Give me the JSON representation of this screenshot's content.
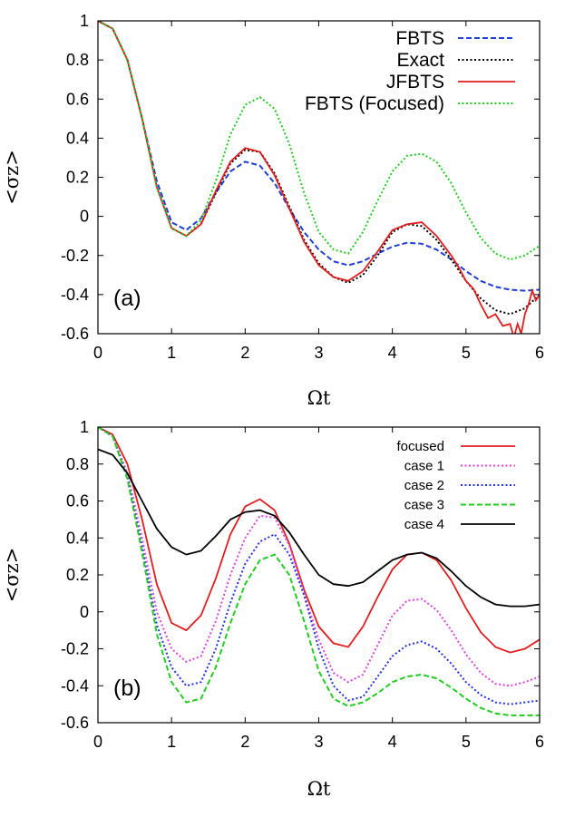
{
  "chart_data": [
    {
      "type": "line",
      "panel_label": "(a)",
      "xlabel": "Ωt",
      "ylabel": "<σz>",
      "xlim": [
        0,
        6
      ],
      "ylim": [
        -0.6,
        1
      ],
      "xticks": [
        "0",
        "1",
        "2",
        "3",
        "4",
        "5",
        "6"
      ],
      "yticks": [
        "-0.6",
        "-0.4",
        "-0.2",
        "0",
        "0.2",
        "0.4",
        "0.6",
        "0.8",
        "1"
      ],
      "legend_position": "top-right",
      "series": [
        {
          "name": "FBTS",
          "color": "#1f3fd6",
          "dash": "dashed",
          "x": [
            0,
            0.2,
            0.4,
            0.6,
            0.8,
            1.0,
            1.2,
            1.4,
            1.6,
            1.8,
            2.0,
            2.2,
            2.4,
            2.6,
            2.8,
            3.0,
            3.2,
            3.4,
            3.6,
            3.8,
            4.0,
            4.2,
            4.4,
            4.6,
            4.8,
            5.0,
            5.2,
            5.4,
            5.6,
            5.8,
            6.0
          ],
          "y": [
            1.0,
            0.96,
            0.8,
            0.5,
            0.18,
            -0.03,
            -0.07,
            -0.01,
            0.12,
            0.23,
            0.28,
            0.26,
            0.17,
            0.04,
            -0.08,
            -0.17,
            -0.23,
            -0.25,
            -0.23,
            -0.19,
            -0.155,
            -0.135,
            -0.14,
            -0.17,
            -0.22,
            -0.28,
            -0.33,
            -0.36,
            -0.375,
            -0.38,
            -0.375
          ]
        },
        {
          "name": "Exact",
          "color": "#000000",
          "dash": "dotted",
          "x": [
            0,
            0.2,
            0.4,
            0.6,
            0.8,
            1.0,
            1.2,
            1.4,
            1.6,
            1.8,
            2.0,
            2.2,
            2.4,
            2.6,
            2.8,
            3.0,
            3.2,
            3.4,
            3.6,
            3.8,
            4.0,
            4.2,
            4.4,
            4.6,
            4.8,
            5.0,
            5.2,
            5.4,
            5.6,
            5.8,
            6.0
          ],
          "y": [
            1.0,
            0.96,
            0.8,
            0.5,
            0.15,
            -0.06,
            -0.1,
            -0.04,
            0.12,
            0.27,
            0.34,
            0.33,
            0.22,
            0.05,
            -0.12,
            -0.24,
            -0.31,
            -0.34,
            -0.3,
            -0.2,
            -0.08,
            -0.04,
            -0.05,
            -0.12,
            -0.22,
            -0.33,
            -0.42,
            -0.48,
            -0.5,
            -0.47,
            -0.4
          ]
        },
        {
          "name": "JFBTS",
          "color": "#e01e1e",
          "dash": "solid",
          "x": [
            0,
            0.2,
            0.4,
            0.6,
            0.8,
            1.0,
            1.2,
            1.4,
            1.6,
            1.8,
            2.0,
            2.2,
            2.4,
            2.6,
            2.8,
            3.0,
            3.2,
            3.4,
            3.6,
            3.8,
            4.0,
            4.2,
            4.4,
            4.6,
            4.8,
            4.9,
            5.0,
            5.1,
            5.2,
            5.3,
            5.4,
            5.5,
            5.6,
            5.65,
            5.7,
            5.75,
            5.8,
            5.85,
            5.9,
            5.95,
            6.0
          ],
          "y": [
            1.0,
            0.96,
            0.8,
            0.5,
            0.15,
            -0.06,
            -0.1,
            -0.04,
            0.13,
            0.28,
            0.35,
            0.33,
            0.21,
            0.04,
            -0.13,
            -0.25,
            -0.31,
            -0.33,
            -0.28,
            -0.18,
            -0.07,
            -0.04,
            -0.03,
            -0.1,
            -0.2,
            -0.26,
            -0.33,
            -0.37,
            -0.45,
            -0.52,
            -0.5,
            -0.56,
            -0.55,
            -0.62,
            -0.55,
            -0.6,
            -0.5,
            -0.45,
            -0.38,
            -0.43,
            -0.4
          ]
        },
        {
          "name": "FBTS (Focused)",
          "color": "#22cc22",
          "dash": "dotted",
          "x": [
            0,
            0.2,
            0.4,
            0.6,
            0.8,
            1.0,
            1.2,
            1.4,
            1.6,
            1.8,
            2.0,
            2.2,
            2.4,
            2.6,
            2.8,
            3.0,
            3.2,
            3.4,
            3.6,
            3.8,
            4.0,
            4.2,
            4.4,
            4.6,
            4.8,
            5.0,
            5.2,
            5.4,
            5.6,
            5.8,
            6.0
          ],
          "y": [
            1.0,
            0.96,
            0.8,
            0.5,
            0.15,
            -0.06,
            -0.1,
            -0.02,
            0.18,
            0.42,
            0.57,
            0.61,
            0.55,
            0.37,
            0.12,
            -0.08,
            -0.17,
            -0.19,
            -0.08,
            0.08,
            0.23,
            0.31,
            0.32,
            0.28,
            0.17,
            0.02,
            -0.11,
            -0.19,
            -0.22,
            -0.2,
            -0.15
          ]
        }
      ]
    },
    {
      "type": "line",
      "panel_label": "(b)",
      "xlabel": "Ωt",
      "ylabel": "<σz>",
      "xlim": [
        0,
        6
      ],
      "ylim": [
        -0.6,
        1
      ],
      "xticks": [
        "0",
        "1",
        "2",
        "3",
        "4",
        "5",
        "6"
      ],
      "yticks": [
        "-0.6",
        "-0.4",
        "-0.2",
        "0",
        "0.2",
        "0.4",
        "0.6",
        "0.8",
        "1"
      ],
      "legend_position": "top-right",
      "series": [
        {
          "name": "focused",
          "color": "#e01e1e",
          "dash": "solid",
          "x": [
            0,
            0.2,
            0.4,
            0.6,
            0.8,
            1.0,
            1.2,
            1.4,
            1.6,
            1.8,
            2.0,
            2.2,
            2.4,
            2.6,
            2.8,
            3.0,
            3.2,
            3.4,
            3.6,
            3.8,
            4.0,
            4.2,
            4.4,
            4.6,
            4.8,
            5.0,
            5.2,
            5.4,
            5.6,
            5.8,
            6.0
          ],
          "y": [
            1.0,
            0.96,
            0.8,
            0.5,
            0.15,
            -0.06,
            -0.1,
            -0.02,
            0.18,
            0.42,
            0.57,
            0.61,
            0.55,
            0.37,
            0.12,
            -0.08,
            -0.17,
            -0.19,
            -0.08,
            0.08,
            0.23,
            0.31,
            0.32,
            0.28,
            0.17,
            0.02,
            -0.11,
            -0.19,
            -0.22,
            -0.2,
            -0.15
          ]
        },
        {
          "name": "case 1",
          "color": "#dd44dd",
          "dash": "dotted",
          "x": [
            0,
            0.2,
            0.4,
            0.6,
            0.8,
            1.0,
            1.2,
            1.4,
            1.6,
            1.8,
            2.0,
            2.2,
            2.4,
            2.6,
            2.8,
            3.0,
            3.2,
            3.4,
            3.6,
            3.8,
            4.0,
            4.2,
            4.4,
            4.6,
            4.8,
            5.0,
            5.2,
            5.4,
            5.6,
            5.8,
            6.0
          ],
          "y": [
            1.0,
            0.95,
            0.75,
            0.4,
            0.0,
            -0.2,
            -0.27,
            -0.24,
            -0.05,
            0.2,
            0.4,
            0.52,
            0.51,
            0.36,
            0.1,
            -0.15,
            -0.33,
            -0.38,
            -0.34,
            -0.18,
            -0.02,
            0.06,
            0.07,
            0.01,
            -0.1,
            -0.23,
            -0.33,
            -0.39,
            -0.4,
            -0.38,
            -0.35
          ]
        },
        {
          "name": "case 2",
          "color": "#2233dd",
          "dash": "dotted",
          "x": [
            0,
            0.2,
            0.4,
            0.6,
            0.8,
            1.0,
            1.2,
            1.4,
            1.6,
            1.8,
            2.0,
            2.2,
            2.4,
            2.6,
            2.8,
            3.0,
            3.2,
            3.4,
            3.6,
            3.8,
            4.0,
            4.2,
            4.4,
            4.6,
            4.8,
            5.0,
            5.2,
            5.4,
            5.6,
            5.8,
            6.0
          ],
          "y": [
            1.0,
            0.95,
            0.73,
            0.35,
            -0.07,
            -0.3,
            -0.4,
            -0.38,
            -0.2,
            0.05,
            0.26,
            0.38,
            0.42,
            0.31,
            0.09,
            -0.2,
            -0.4,
            -0.48,
            -0.46,
            -0.35,
            -0.24,
            -0.18,
            -0.16,
            -0.2,
            -0.28,
            -0.38,
            -0.45,
            -0.49,
            -0.5,
            -0.49,
            -0.48
          ]
        },
        {
          "name": "case 3",
          "color": "#22cc22",
          "dash": "dashed",
          "x": [
            0,
            0.2,
            0.4,
            0.6,
            0.8,
            1.0,
            1.2,
            1.4,
            1.6,
            1.8,
            2.0,
            2.2,
            2.4,
            2.6,
            2.8,
            3.0,
            3.2,
            3.4,
            3.6,
            3.8,
            4.0,
            4.2,
            4.4,
            4.6,
            4.8,
            5.0,
            5.2,
            5.4,
            5.6,
            5.8,
            6.0
          ],
          "y": [
            1.0,
            0.95,
            0.72,
            0.32,
            -0.12,
            -0.38,
            -0.49,
            -0.47,
            -0.3,
            -0.06,
            0.15,
            0.28,
            0.31,
            0.2,
            -0.05,
            -0.32,
            -0.47,
            -0.51,
            -0.49,
            -0.44,
            -0.38,
            -0.35,
            -0.34,
            -0.36,
            -0.41,
            -0.47,
            -0.52,
            -0.55,
            -0.56,
            -0.56,
            -0.56
          ]
        },
        {
          "name": "case 4",
          "color": "#000000",
          "dash": "solid",
          "x": [
            0,
            0.2,
            0.4,
            0.6,
            0.8,
            1.0,
            1.2,
            1.4,
            1.6,
            1.8,
            2.0,
            2.2,
            2.4,
            2.6,
            2.8,
            3.0,
            3.2,
            3.4,
            3.6,
            3.8,
            4.0,
            4.2,
            4.4,
            4.6,
            4.8,
            5.0,
            5.2,
            5.4,
            5.6,
            5.8,
            6.0
          ],
          "y": [
            0.88,
            0.85,
            0.75,
            0.6,
            0.45,
            0.35,
            0.31,
            0.33,
            0.41,
            0.5,
            0.54,
            0.55,
            0.52,
            0.43,
            0.31,
            0.2,
            0.15,
            0.14,
            0.16,
            0.22,
            0.28,
            0.31,
            0.32,
            0.29,
            0.22,
            0.14,
            0.08,
            0.04,
            0.03,
            0.03,
            0.04
          ]
        }
      ]
    }
  ]
}
